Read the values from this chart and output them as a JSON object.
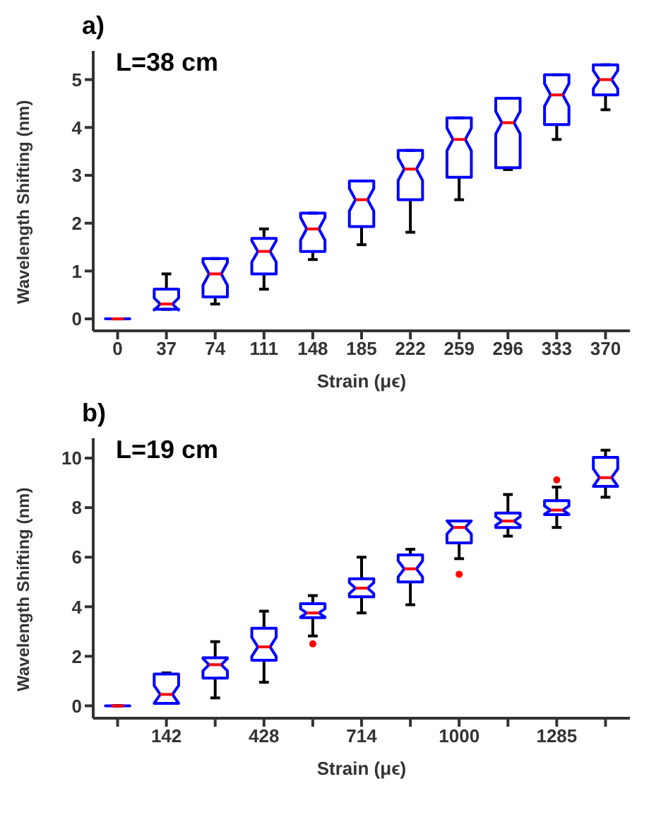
{
  "chart_data": [
    {
      "type": "box",
      "title": "a)",
      "xlabel": "Strain (μϵ)",
      "ylabel": "Wavelength Shifting (nm)",
      "annotations": [
        "L=38 cm"
      ],
      "categories": [
        "0",
        "37",
        "74",
        "111",
        "148",
        "185",
        "222",
        "259",
        "296",
        "333",
        "370"
      ],
      "ylim": [
        -0.25,
        5.6
      ],
      "yticks": [
        0,
        1,
        2,
        3,
        4,
        5
      ],
      "series": [
        {
          "color": "#0000ff",
          "boxes": [
            {
              "low": 0,
              "q1": 0,
              "median": 0,
              "q3": 0,
              "high": 0
            },
            {
              "low": 0.2,
              "q1": 0.2,
              "median": 0.31,
              "q3": 0.62,
              "high": 0.94
            },
            {
              "low": 0.31,
              "q1": 0.46,
              "median": 0.94,
              "q3": 1.26,
              "high": 1.26
            },
            {
              "low": 0.62,
              "q1": 0.94,
              "median": 1.41,
              "q3": 1.68,
              "high": 1.88
            },
            {
              "low": 1.24,
              "q1": 1.41,
              "median": 1.88,
              "q3": 2.21,
              "high": 2.21
            },
            {
              "low": 1.55,
              "q1": 1.93,
              "median": 2.49,
              "q3": 2.88,
              "high": 2.88
            },
            {
              "low": 1.81,
              "q1": 2.49,
              "median": 3.13,
              "q3": 3.52,
              "high": 3.52
            },
            {
              "low": 2.49,
              "q1": 2.96,
              "median": 3.75,
              "q3": 4.2,
              "high": 4.2
            },
            {
              "low": 3.12,
              "q1": 3.16,
              "median": 4.1,
              "q3": 4.61,
              "high": 4.61
            },
            {
              "low": 3.75,
              "q1": 4.06,
              "median": 4.68,
              "q3": 5.1,
              "high": 5.1
            },
            {
              "low": 4.37,
              "q1": 4.68,
              "median": 5.0,
              "q3": 5.31,
              "high": 5.31
            }
          ]
        }
      ]
    },
    {
      "type": "box",
      "title": "b)",
      "xlabel": "Strain (μϵ)",
      "ylabel": "Wavelength Shifting (nm)",
      "annotations": [
        "L=19 cm"
      ],
      "categories": [
        null,
        "142",
        null,
        "428",
        null,
        "714",
        null,
        "1000",
        null,
        "1285",
        null
      ],
      "ylim": [
        -0.5,
        10.8
      ],
      "yticks": [
        0,
        2,
        4,
        6,
        8,
        10
      ],
      "series": [
        {
          "color": "#0000ff",
          "boxes": [
            {
              "low": 0,
              "q1": 0,
              "median": 0,
              "q3": 0,
              "high": 0
            },
            {
              "low": 0.1,
              "q1": 0.1,
              "median": 0.46,
              "q3": 1.28,
              "high": 1.33
            },
            {
              "low": 0.32,
              "q1": 1.12,
              "median": 1.66,
              "q3": 1.94,
              "high": 2.59
            },
            {
              "low": 0.95,
              "q1": 1.84,
              "median": 2.38,
              "q3": 3.13,
              "high": 3.82
            },
            {
              "low": 2.82,
              "q1": 3.56,
              "median": 3.75,
              "q3": 4.12,
              "high": 4.45,
              "outliers": [
                2.5
              ]
            },
            {
              "low": 3.75,
              "q1": 4.4,
              "median": 4.75,
              "q3": 5.13,
              "high": 6.0
            },
            {
              "low": 4.08,
              "q1": 5.0,
              "median": 5.53,
              "q3": 6.09,
              "high": 6.32
            },
            {
              "low": 5.94,
              "q1": 6.58,
              "median": 7.2,
              "q3": 7.46,
              "high": 7.46,
              "outliers": [
                5.31
              ]
            },
            {
              "low": 6.85,
              "q1": 7.2,
              "median": 7.46,
              "q3": 7.78,
              "high": 8.53
            },
            {
              "low": 7.2,
              "q1": 7.72,
              "median": 7.9,
              "q3": 8.28,
              "high": 8.83,
              "outliers": [
                9.12
              ]
            },
            {
              "low": 8.42,
              "q1": 8.86,
              "median": 9.21,
              "q3": 10.03,
              "high": 10.32
            }
          ]
        }
      ]
    }
  ]
}
